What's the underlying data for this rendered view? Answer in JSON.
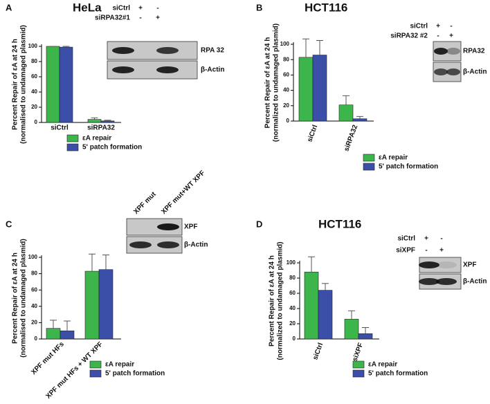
{
  "chart_data": [
    {
      "type": "bar",
      "panel": "A",
      "title": "HeLa",
      "y_label": [
        "Percent Repair of εA at 24 h",
        "(normalised to undamaged plasmid)"
      ],
      "categories": [
        "siCtrl",
        "siRPA32"
      ],
      "series": [
        {
          "name": "εA repair",
          "color": "#3cb54a",
          "values": [
            100,
            4
          ],
          "errors": [
            0,
            2
          ]
        },
        {
          "name": "5' patch formation",
          "color": "#3b4fa8",
          "values": [
            99,
            2
          ],
          "errors": [
            1,
            1
          ]
        }
      ],
      "ylim": [
        0,
        100
      ],
      "yticks": [
        0,
        20,
        40,
        60,
        80,
        100
      ],
      "blot": {
        "rows": [
          {
            "label": "siCtrl",
            "lanes": [
              "+",
              "-"
            ]
          },
          {
            "label": "siRPA32#1",
            "lanes": [
              "-",
              "+"
            ]
          }
        ],
        "proteins": [
          "RPA 32",
          "β-Actin"
        ]
      }
    },
    {
      "type": "bar",
      "panel": "B",
      "title": "HCT116",
      "y_label": [
        "Percent Repair of εA at 24 h",
        "(normalized to undamaged plasmid)"
      ],
      "categories": [
        "siCtrl",
        "siRPA32"
      ],
      "series": [
        {
          "name": "εA repair",
          "color": "#3cb54a",
          "values": [
            83,
            21
          ],
          "errors": [
            24,
            12
          ]
        },
        {
          "name": "5' patch formation",
          "color": "#3b4fa8",
          "values": [
            86,
            3
          ],
          "errors": [
            19,
            3
          ]
        }
      ],
      "ylim": [
        0,
        100
      ],
      "yticks": [
        0,
        20,
        40,
        60,
        80,
        100
      ],
      "blot": {
        "rows": [
          {
            "label": "siCtrl",
            "lanes": [
              "+",
              "-"
            ]
          },
          {
            "label": "siRPA32 #2",
            "lanes": [
              "-",
              "+"
            ]
          }
        ],
        "proteins": [
          "RPA32",
          "β-Actin"
        ]
      }
    },
    {
      "type": "bar",
      "panel": "C",
      "y_label": [
        "Percent Repair of εA at 24 h",
        "(normalised to undamaged plasmid)"
      ],
      "categories": [
        "XPF mut HFs",
        "XPF mut HFs + WT XPF"
      ],
      "series": [
        {
          "name": "εA repair",
          "color": "#3cb54a",
          "values": [
            13,
            83
          ],
          "errors": [
            10,
            21
          ]
        },
        {
          "name": "5' patch formation",
          "color": "#3b4fa8",
          "values": [
            10,
            85
          ],
          "errors": [
            12,
            18
          ]
        }
      ],
      "ylim": [
        0,
        100
      ],
      "yticks": [
        0,
        20,
        40,
        60,
        80,
        100
      ],
      "blot": {
        "lanes": [
          "XPF mut",
          "XPF mut+WT XPF"
        ],
        "proteins": [
          "XPF",
          "β-Actin"
        ]
      }
    },
    {
      "type": "bar",
      "panel": "D",
      "title": "HCT116",
      "y_label": [
        "Percent Repair of εA at 24 h",
        "(normalized to undamaged plasmid)"
      ],
      "categories": [
        "siCtrl",
        "siXPF"
      ],
      "series": [
        {
          "name": "εA repair",
          "color": "#3cb54a",
          "values": [
            88,
            26
          ],
          "errors": [
            20,
            11
          ]
        },
        {
          "name": "5' patch formation",
          "color": "#3b4fa8",
          "values": [
            64,
            7
          ],
          "errors": [
            9,
            8
          ]
        }
      ],
      "ylim": [
        0,
        100
      ],
      "yticks": [
        0,
        20,
        40,
        60,
        80,
        100
      ],
      "blot": {
        "rows": [
          {
            "label": "siCtrl",
            "lanes": [
              "+",
              "-"
            ]
          },
          {
            "label": "siXPF",
            "lanes": [
              "-",
              "+"
            ]
          }
        ],
        "proteins": [
          "XPF",
          "β-Actin"
        ]
      }
    }
  ]
}
